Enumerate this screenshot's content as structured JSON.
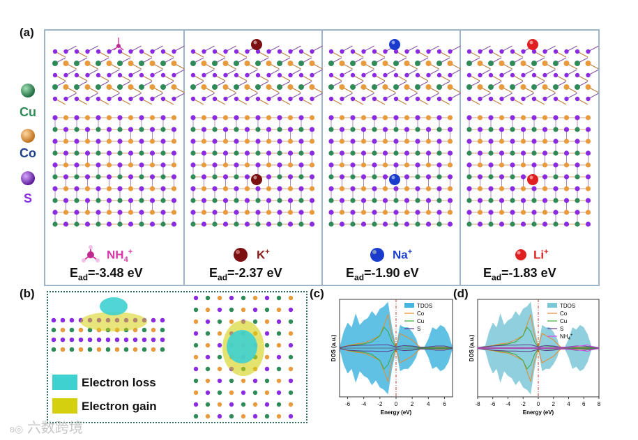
{
  "figure": {
    "panel_labels": {
      "a": "(a)",
      "b": "(b)",
      "c": "(c)",
      "d": "(d)"
    },
    "colors": {
      "cu": "#2e8b57",
      "co": "#e89a3c",
      "s": "#8a2be2",
      "nh4": "#d63aa8",
      "k": "#7a1010",
      "na": "#1a3ccc",
      "li": "#e02020",
      "loss": "#3fd0d0",
      "gain": "#d4d010"
    },
    "panel_a": {
      "legend": [
        {
          "element": "Cu",
          "color": "#2e8b57",
          "text_color": "#2e8b57"
        },
        {
          "element": "Co",
          "color": "#e89a3c",
          "text_color": "#1e3f8a"
        },
        {
          "element": "S",
          "color": "#8a2be2",
          "text_color": "#8a2be2"
        }
      ],
      "ions": [
        {
          "name": "NH4+",
          "label_main": "NH",
          "label_sub": "4",
          "label_sup": "+",
          "color": "#d63aa8",
          "energy_prefix": "E",
          "energy_sub": "ad",
          "energy_value": "=-3.48 eV"
        },
        {
          "name": "K+",
          "label_main": "K",
          "label_sub": "",
          "label_sup": "+",
          "color": "#7a1010",
          "energy_prefix": "E",
          "energy_sub": "ad",
          "energy_value": "=-2.37 eV"
        },
        {
          "name": "Na+",
          "label_main": "Na",
          "label_sub": "",
          "label_sup": "+",
          "color": "#1a3ccc",
          "energy_prefix": "E",
          "energy_sub": "ad",
          "energy_value": "=-1.90 eV"
        },
        {
          "name": "Li+",
          "label_main": "Li",
          "label_sub": "",
          "label_sup": "+",
          "color": "#e02020",
          "energy_prefix": "E",
          "energy_sub": "ad",
          "energy_value": "=-1.83 eV"
        }
      ]
    },
    "panel_b": {
      "loss_label": "Electron loss",
      "gain_label": "Electron gain"
    },
    "watermark": "六数跨境"
  },
  "chart_data": [
    {
      "type": "area",
      "panel": "(c)",
      "xlabel": "Energy (eV)",
      "ylabel": "DOS (a.u.)",
      "xlim": [
        -7,
        7
      ],
      "xticks": [
        "-6",
        "-4",
        "-2",
        "0",
        "2",
        "4",
        "6"
      ],
      "fermi_level": 0,
      "legend": [
        "TDOS",
        "Co",
        "Cu",
        "S"
      ],
      "series": [
        {
          "name": "TDOS",
          "color": "#45b6e0",
          "x": [
            -7,
            -6.5,
            -6,
            -5.5,
            -5,
            -4.5,
            -4,
            -3.5,
            -3,
            -2.5,
            -2,
            -1.5,
            -1,
            -0.5,
            0,
            0.5,
            1,
            1.5,
            2,
            2.5,
            2.8,
            3.5,
            4,
            4.5,
            5,
            5.5,
            6,
            6.5,
            7
          ],
          "values": [
            0.02,
            0.35,
            0.55,
            0.45,
            0.75,
            0.5,
            0.6,
            0.65,
            0.8,
            0.7,
            0.85,
            0.9,
            1.0,
            0.45,
            0.05,
            0.5,
            0.45,
            0.45,
            0.35,
            0.2,
            0.03,
            0.02,
            0.2,
            0.45,
            0.4,
            0.5,
            0.45,
            0.3,
            0.02
          ]
        },
        {
          "name": "Co",
          "color": "#e88a2a",
          "x": [
            -7,
            -6,
            -5,
            -4,
            -3,
            -2,
            -1.5,
            -1,
            -0.5,
            0,
            0.5,
            1,
            1.5,
            2,
            2.5,
            3,
            4,
            5,
            6,
            7
          ],
          "values": [
            0.01,
            0.06,
            0.1,
            0.12,
            0.2,
            0.3,
            0.55,
            0.8,
            0.3,
            0.03,
            0.35,
            0.3,
            0.25,
            0.2,
            0.1,
            0.02,
            0.01,
            0.02,
            0.02,
            0.01
          ]
        },
        {
          "name": "Cu",
          "color": "#3aa83a",
          "x": [
            -7,
            -6,
            -5,
            -4,
            -3,
            -2,
            -1.5,
            -1,
            -0.5,
            0,
            0.5,
            1,
            2,
            3,
            4,
            5,
            6,
            7
          ],
          "values": [
            0.01,
            0.05,
            0.08,
            0.1,
            0.15,
            0.3,
            0.5,
            0.4,
            0.15,
            0.02,
            0.05,
            0.05,
            0.04,
            0.01,
            0.01,
            0.01,
            0.01,
            0.01
          ]
        },
        {
          "name": "S",
          "color": "#5a3a8a",
          "x": [
            -7,
            -6,
            -5,
            -4,
            -3,
            -2,
            -1,
            0,
            1,
            2,
            3,
            4,
            5,
            6,
            7
          ],
          "values": [
            0.01,
            0.05,
            0.06,
            0.07,
            0.07,
            0.08,
            0.08,
            0.03,
            0.06,
            0.05,
            0.02,
            0.03,
            0.05,
            0.05,
            0.01
          ]
        }
      ]
    },
    {
      "type": "area",
      "panel": "(d)",
      "xlabel": "Energy (eV)",
      "ylabel": "DOS (a.u.)",
      "xlim": [
        -8,
        8
      ],
      "xticks": [
        "-8",
        "-6",
        "-4",
        "-2",
        "0",
        "2",
        "4",
        "6",
        "8"
      ],
      "fermi_level": 0,
      "legend": [
        "TDOS",
        "Co",
        "Cu",
        "S",
        "NH4+"
      ],
      "series": [
        {
          "name": "TDOS",
          "color": "#7cc8d8",
          "x": [
            -8,
            -7,
            -6.5,
            -6,
            -5.5,
            -5,
            -4.5,
            -4,
            -3.5,
            -3,
            -2.5,
            -2,
            -1.5,
            -1,
            -0.5,
            0,
            0.5,
            1,
            1.5,
            2,
            2.5,
            2.8,
            3.5,
            4,
            4.5,
            5,
            5.5,
            6,
            6.5,
            7,
            8
          ],
          "values": [
            0.02,
            0.05,
            0.35,
            0.55,
            0.45,
            0.75,
            0.5,
            0.6,
            0.65,
            0.8,
            0.7,
            0.85,
            0.9,
            1.0,
            0.45,
            0.05,
            0.5,
            0.45,
            0.45,
            0.35,
            0.2,
            0.03,
            0.02,
            0.2,
            0.45,
            0.4,
            0.5,
            0.45,
            0.3,
            0.05,
            0.02
          ]
        },
        {
          "name": "Co",
          "color": "#e88a2a",
          "x": [
            -8,
            -6,
            -5,
            -4,
            -3,
            -2,
            -1.5,
            -1,
            -0.5,
            0,
            0.5,
            1,
            1.5,
            2,
            2.5,
            3,
            4,
            5,
            6,
            8
          ],
          "values": [
            0.01,
            0.06,
            0.1,
            0.12,
            0.2,
            0.3,
            0.55,
            0.8,
            0.3,
            0.03,
            0.35,
            0.3,
            0.25,
            0.2,
            0.1,
            0.02,
            0.01,
            0.02,
            0.02,
            0.01
          ]
        },
        {
          "name": "Cu",
          "color": "#3aa83a",
          "x": [
            -8,
            -6,
            -5,
            -4,
            -3,
            -2,
            -1.5,
            -1,
            -0.5,
            0,
            0.5,
            1,
            2,
            3,
            4,
            5,
            6,
            8
          ],
          "values": [
            0.01,
            0.05,
            0.08,
            0.1,
            0.15,
            0.3,
            0.5,
            0.4,
            0.15,
            0.02,
            0.05,
            0.05,
            0.04,
            0.01,
            0.01,
            0.01,
            0.01,
            0.01
          ]
        },
        {
          "name": "S",
          "color": "#5a3a8a",
          "x": [
            -8,
            -6,
            -5,
            -4,
            -3,
            -2,
            -1,
            0,
            1,
            2,
            3,
            4,
            5,
            6,
            8
          ],
          "values": [
            0.01,
            0.05,
            0.06,
            0.07,
            0.07,
            0.08,
            0.08,
            0.03,
            0.06,
            0.05,
            0.02,
            0.03,
            0.05,
            0.05,
            0.01
          ]
        },
        {
          "name": "NH4+",
          "color": "#e040e0",
          "x": [
            -8,
            -6,
            -4,
            -2,
            0,
            2,
            4,
            5,
            6,
            6.5,
            7,
            8
          ],
          "values": [
            0.01,
            0.01,
            0.01,
            0.01,
            0.01,
            0.01,
            0.02,
            0.04,
            0.06,
            0.08,
            0.04,
            0.01
          ]
        }
      ]
    }
  ]
}
